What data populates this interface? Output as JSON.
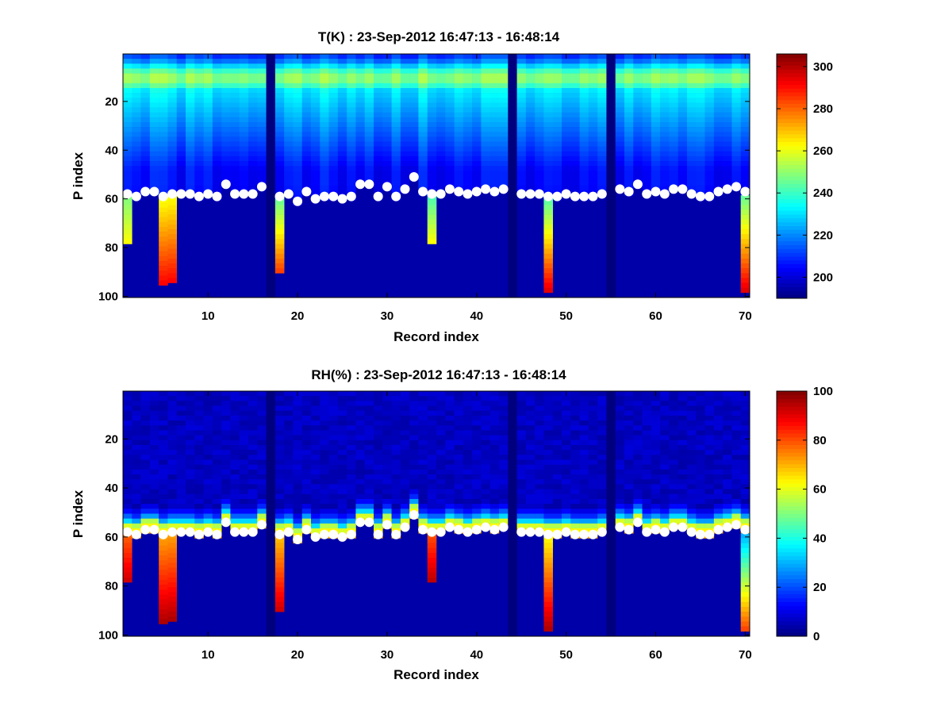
{
  "chart_data": [
    {
      "type": "heatmap",
      "title": "T(K) : 23-Sep-2012 16:47:13 - 16:48:14",
      "xlabel": "Record index",
      "ylabel": "P index",
      "xlim": [
        0.5,
        70.5
      ],
      "ylim": [
        0.5,
        100.5
      ],
      "y_reversed": true,
      "xticks": [
        10,
        20,
        30,
        40,
        50,
        60,
        70
      ],
      "yticks": [
        20,
        40,
        60,
        80,
        100
      ],
      "colorbar": {
        "min": 190,
        "max": 306,
        "ticks": [
          200,
          220,
          240,
          260,
          280,
          300
        ]
      },
      "n_records": 70,
      "n_levels": 100,
      "missing_records": [
        17,
        44,
        55
      ],
      "surface_index": [
        58,
        59,
        57,
        57,
        59,
        58,
        58,
        58,
        59,
        58,
        59,
        54,
        58,
        58,
        58,
        55,
        57,
        59,
        58,
        61,
        57,
        60,
        59,
        59,
        60,
        59,
        54,
        54,
        59,
        55,
        59,
        56,
        51,
        57,
        58,
        58,
        56,
        57,
        58,
        57,
        56,
        57,
        56,
        59,
        58,
        58,
        58,
        59,
        59,
        58,
        59,
        59,
        59,
        58,
        58,
        56,
        57,
        54,
        58,
        57,
        58,
        56,
        56,
        58,
        59,
        59,
        57,
        56,
        55,
        57
      ],
      "below_ground_anomalies": [
        {
          "record": 1,
          "from": 59,
          "to": 77,
          "low": 248,
          "high": 262
        },
        {
          "record": 5,
          "from": 60,
          "to": 95,
          "low": 262,
          "high": 292
        },
        {
          "record": 6,
          "from": 59,
          "to": 94,
          "low": 262,
          "high": 292
        },
        {
          "record": 18,
          "from": 59,
          "to": 89,
          "low": 244,
          "high": 284
        },
        {
          "record": 35,
          "from": 59,
          "to": 77,
          "low": 242,
          "high": 262
        },
        {
          "record": 48,
          "from": 59,
          "to": 98,
          "low": 242,
          "high": 296
        },
        {
          "record": 70,
          "from": 59,
          "to": 98,
          "low": 246,
          "high": 296
        }
      ]
    },
    {
      "type": "heatmap",
      "title": "RH(%) : 23-Sep-2012 16:47:13 - 16:48:14",
      "xlabel": "Record index",
      "ylabel": "P index",
      "xlim": [
        0.5,
        70.5
      ],
      "ylim": [
        0.5,
        100.5
      ],
      "y_reversed": true,
      "xticks": [
        10,
        20,
        30,
        40,
        50,
        60,
        70
      ],
      "yticks": [
        20,
        40,
        60,
        80,
        100
      ],
      "colorbar": {
        "min": 0,
        "max": 100,
        "ticks": [
          0,
          20,
          40,
          60,
          80,
          100
        ]
      },
      "n_records": 70,
      "n_levels": 100,
      "missing_records": [
        17,
        44,
        55
      ],
      "surface_index": [
        58,
        59,
        57,
        57,
        59,
        58,
        58,
        58,
        59,
        58,
        59,
        54,
        58,
        58,
        58,
        55,
        57,
        59,
        58,
        61,
        57,
        60,
        59,
        59,
        60,
        59,
        54,
        54,
        59,
        55,
        59,
        56,
        51,
        57,
        58,
        58,
        56,
        57,
        58,
        57,
        56,
        57,
        56,
        59,
        58,
        58,
        58,
        59,
        59,
        58,
        59,
        59,
        59,
        58,
        58,
        56,
        57,
        54,
        58,
        57,
        58,
        56,
        56,
        58,
        59,
        59,
        57,
        56,
        55,
        57
      ],
      "below_ground_anomalies": [
        {
          "record": 1,
          "from": 59,
          "to": 77,
          "low": 78,
          "high": 92
        },
        {
          "record": 5,
          "from": 60,
          "to": 95,
          "low": 72,
          "high": 96
        },
        {
          "record": 6,
          "from": 59,
          "to": 94,
          "low": 72,
          "high": 96
        },
        {
          "record": 18,
          "from": 59,
          "to": 89,
          "low": 68,
          "high": 92
        },
        {
          "record": 35,
          "from": 59,
          "to": 77,
          "low": 80,
          "high": 94
        },
        {
          "record": 48,
          "from": 59,
          "to": 98,
          "low": 62,
          "high": 96
        },
        {
          "record": 70,
          "from": 59,
          "to": 98,
          "low": 30,
          "high": 82
        }
      ]
    }
  ]
}
